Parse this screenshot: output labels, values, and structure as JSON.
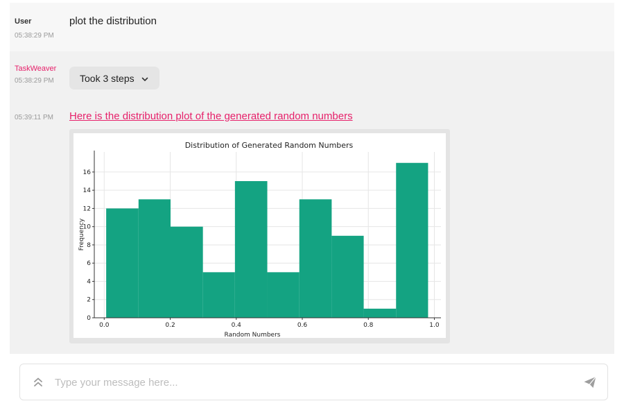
{
  "messages": {
    "user": {
      "sender": "User",
      "time": "05:38:29 PM",
      "text": "plot the distribution"
    },
    "bot": {
      "sender": "TaskWeaver",
      "time": "05:38:29 PM",
      "steps_label": "Took 3 steps",
      "reply_time": "05:39:11 PM",
      "reply_text": "Here is the distribution plot of the generated random numbers"
    }
  },
  "chart_data": {
    "type": "bar",
    "title": "Distribution of Generated Random Numbers",
    "xlabel": "Random Numbers",
    "ylabel": "Frequency",
    "bins": [
      {
        "x0": 0.006,
        "x1": 0.104,
        "value": 12
      },
      {
        "x0": 0.104,
        "x1": 0.201,
        "value": 13
      },
      {
        "x0": 0.201,
        "x1": 0.299,
        "value": 10
      },
      {
        "x0": 0.299,
        "x1": 0.396,
        "value": 5
      },
      {
        "x0": 0.396,
        "x1": 0.494,
        "value": 15
      },
      {
        "x0": 0.494,
        "x1": 0.591,
        "value": 5
      },
      {
        "x0": 0.591,
        "x1": 0.689,
        "value": 13
      },
      {
        "x0": 0.689,
        "x1": 0.786,
        "value": 9
      },
      {
        "x0": 0.786,
        "x1": 0.884,
        "value": 1
      },
      {
        "x0": 0.884,
        "x1": 0.981,
        "value": 17
      }
    ],
    "xlim": [
      -0.03,
      1.02
    ],
    "ylim": [
      0,
      18.2
    ],
    "xticks": [
      0.0,
      0.2,
      0.4,
      0.6,
      0.8,
      1.0
    ],
    "xtick_labels": [
      "0.0",
      "0.2",
      "0.4",
      "0.6",
      "0.8",
      "1.0"
    ],
    "yticks": [
      0,
      2,
      4,
      6,
      8,
      10,
      12,
      14,
      16
    ],
    "ytick_labels": [
      "0",
      "2",
      "4",
      "6",
      "8",
      "10",
      "12",
      "14",
      "16"
    ],
    "grid": true,
    "bar_color": "#14a382"
  },
  "input": {
    "placeholder": "Type your message here...",
    "value": ""
  },
  "colors": {
    "accent": "#e6206a"
  }
}
